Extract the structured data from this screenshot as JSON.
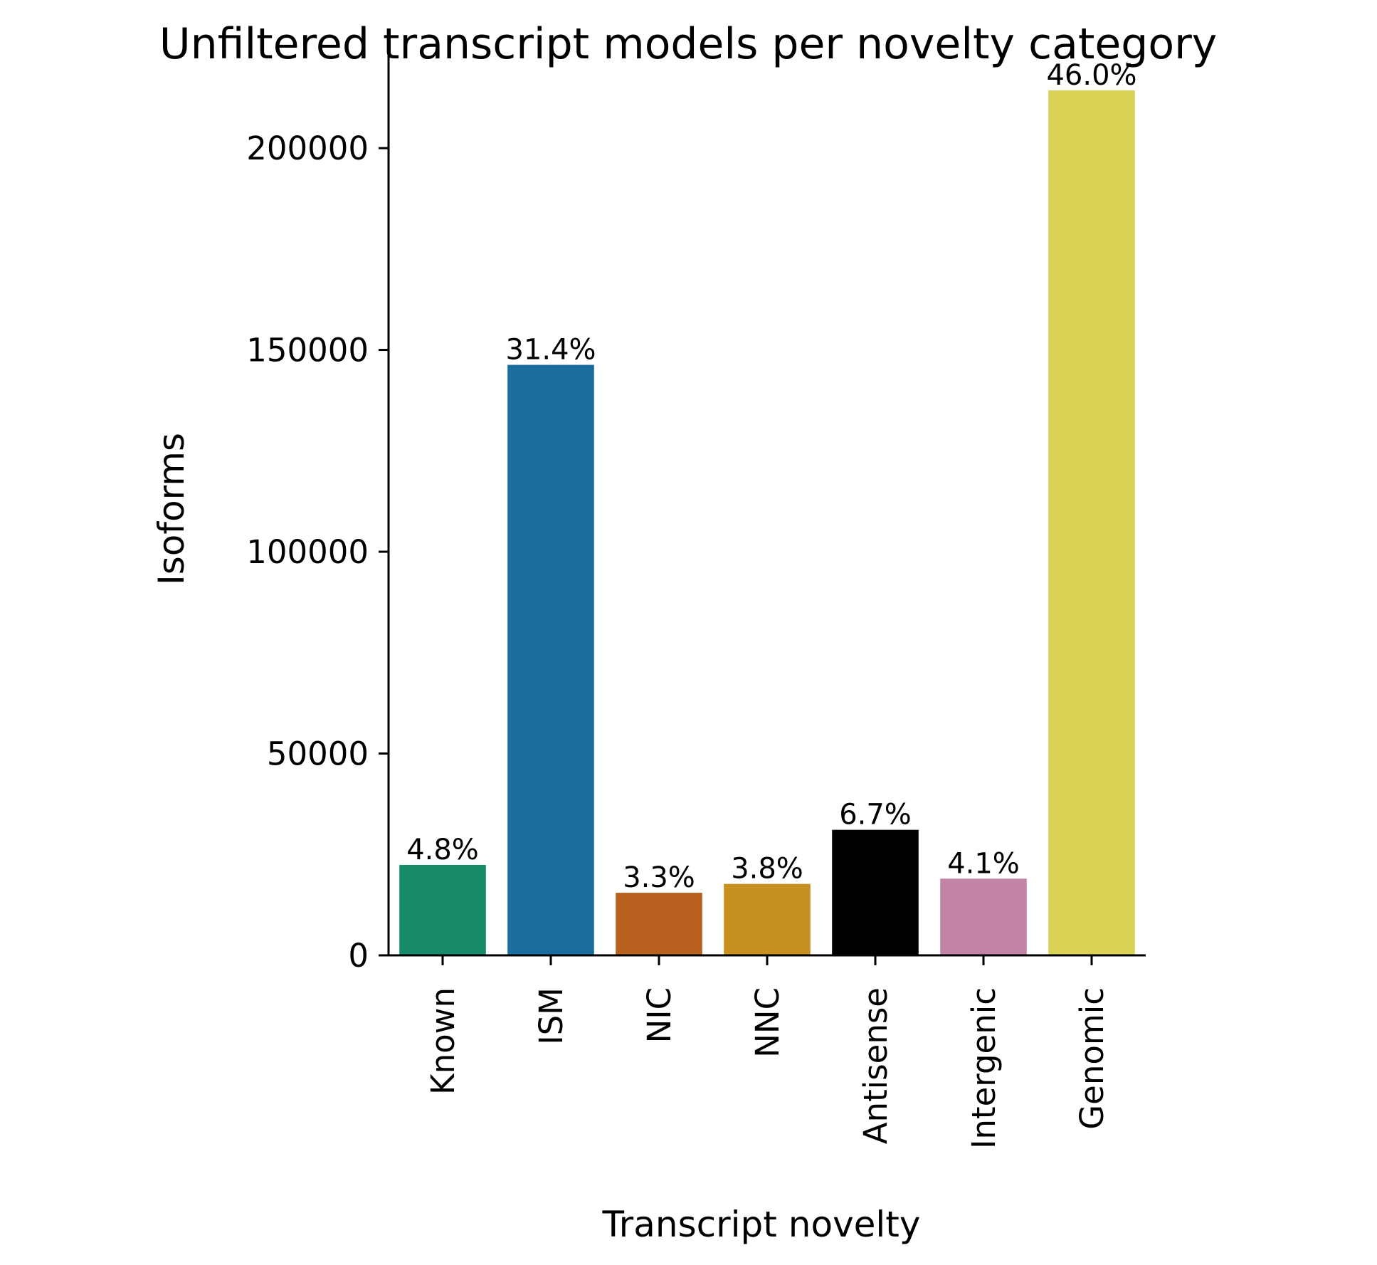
{
  "chart_data": {
    "type": "bar",
    "title": "Unfiltered transcript models per novelty category",
    "xlabel": "Transcript novelty",
    "ylabel": "Isoforms",
    "categories": [
      "Known",
      "ISM",
      "NIC",
      "NNC",
      "Antisense",
      "Intergenic",
      "Genomic"
    ],
    "values": [
      22400,
      146300,
      15500,
      17700,
      31100,
      19000,
      214300
    ],
    "data_labels": [
      "4.8%",
      "31.4%",
      "3.3%",
      "3.8%",
      "6.7%",
      "4.1%",
      "46.0%"
    ],
    "colors": [
      "#178a6a",
      "#1a6e9e",
      "#b8601d",
      "#c8901f",
      "#000000",
      "#c283a6",
      "#d9d255"
    ],
    "ylim": [
      0,
      230000
    ],
    "yticks": [
      0,
      50000,
      100000,
      150000,
      200000
    ],
    "grid": false,
    "legend": "none"
  }
}
